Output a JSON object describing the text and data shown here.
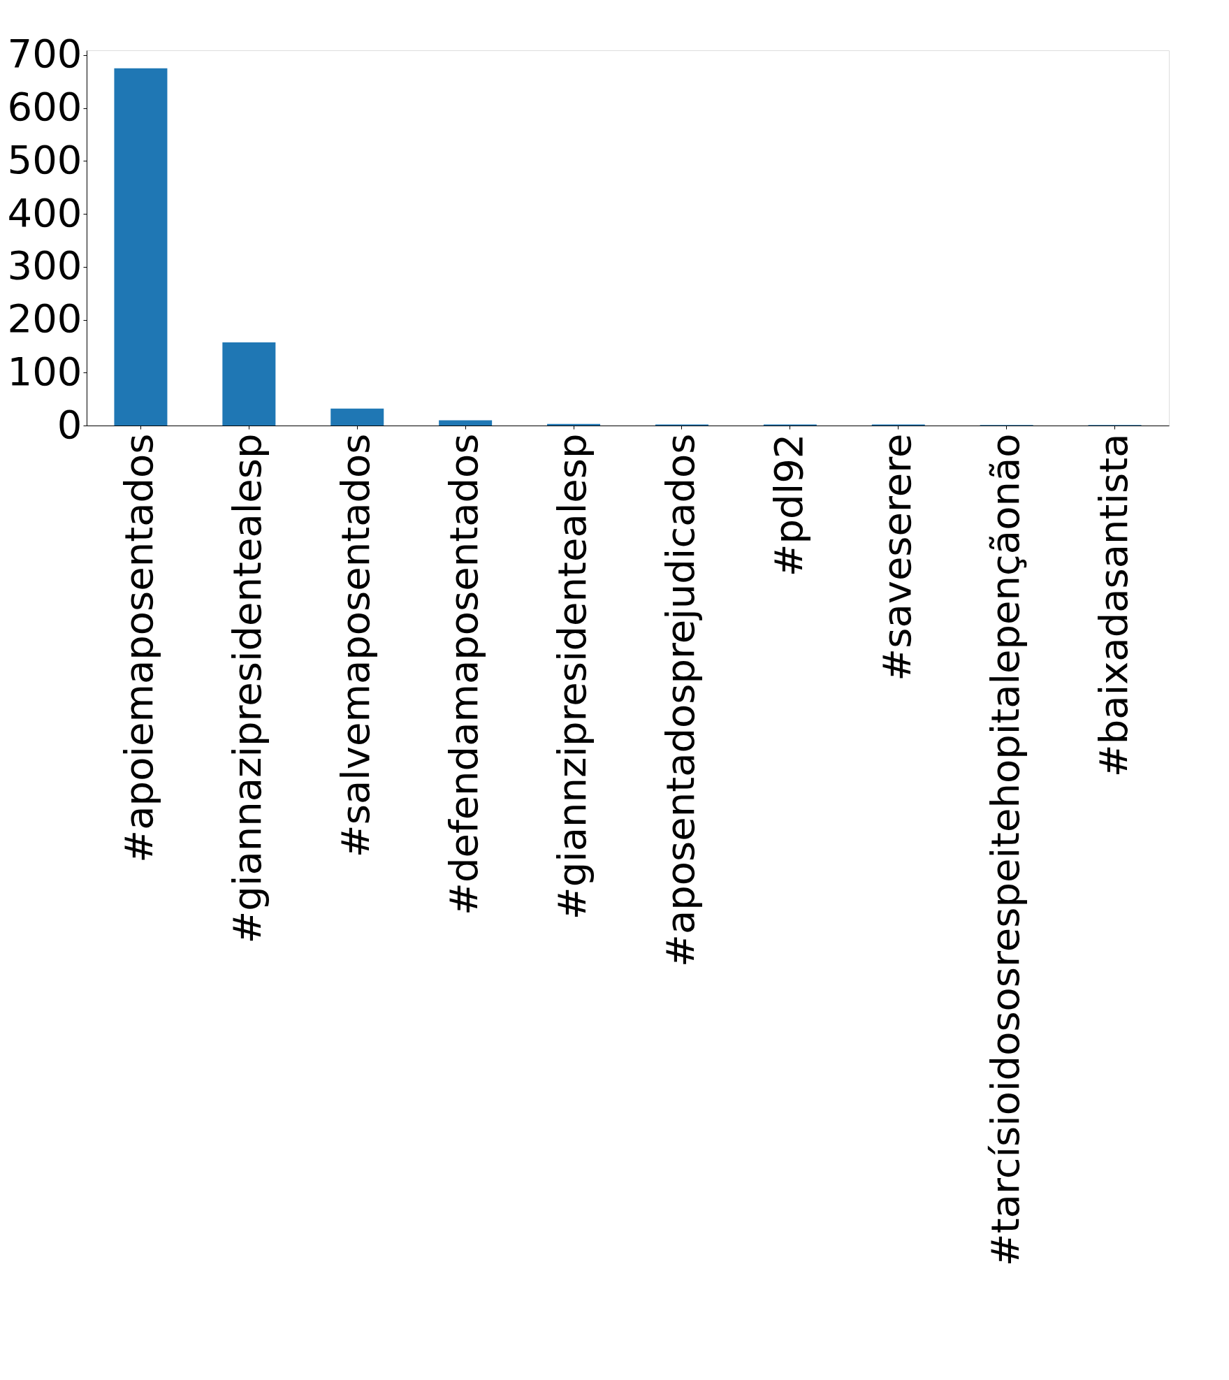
{
  "chart_data": {
    "type": "bar",
    "categories": [
      "#apoiemaposentados",
      "#giannazipresidentealesp",
      "#salvemaposentados",
      "#defendamaposentados",
      "#giannzipresidentealesp",
      "#aposentadosprejudicados",
      "#pdl92",
      "#saveserere",
      "#tarcísioidososrespeitehopitalepençãonão",
      "#baixadasantista"
    ],
    "values": [
      675,
      157,
      32,
      10,
      3,
      2,
      2,
      2,
      1,
      1
    ],
    "color": "#1f77b4",
    "ylim": [
      0,
      709
    ],
    "yticks": [
      0,
      100,
      200,
      300,
      400,
      500,
      600,
      700
    ],
    "grid": false
  }
}
